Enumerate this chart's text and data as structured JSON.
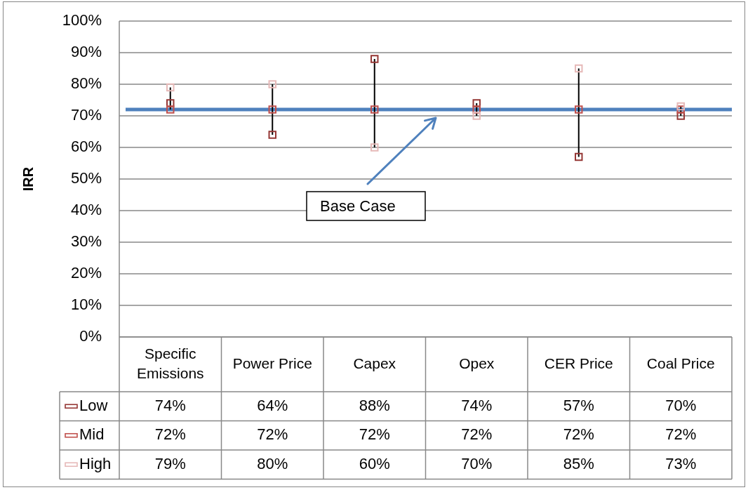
{
  "chart_data": {
    "type": "scatter",
    "ylabel": "IRR",
    "categories": [
      "Specific Emissions",
      "Power Price",
      "Capex",
      "Opex",
      "CER Price",
      "Coal Price"
    ],
    "series": [
      {
        "type": "bar",
        "color": "#000000",
        "base": [
          72,
          64,
          60,
          70,
          57,
          70
        ],
        "values": [
          7,
          16,
          28,
          4,
          28,
          3
        ]
      },
      {
        "name": "Low",
        "color": "#953735",
        "values": [
          74,
          64,
          88,
          74,
          57,
          70
        ],
        "value_labels": [
          "74%",
          "64%",
          "88%",
          "74%",
          "57%",
          "70%"
        ]
      },
      {
        "name": "Mid",
        "color": "#c0504d",
        "values": [
          72,
          72,
          72,
          72,
          72,
          72
        ],
        "value_labels": [
          "72%",
          "72%",
          "72%",
          "72%",
          "72%",
          "72%"
        ]
      },
      {
        "name": "High",
        "color": "#e6b9b8",
        "values": [
          79,
          80,
          60,
          70,
          85,
          73
        ],
        "value_labels": [
          "79%",
          "80%",
          "60%",
          "70%",
          "85%",
          "73%"
        ]
      }
    ],
    "ylim": [
      0,
      100
    ],
    "yticks": [
      {
        "value": 0,
        "label": "0%"
      },
      {
        "value": 10,
        "label": "10%"
      },
      {
        "value": 20,
        "label": "20%"
      },
      {
        "value": 30,
        "label": "30%"
      },
      {
        "value": 40,
        "label": "40%"
      },
      {
        "value": 50,
        "label": "50%"
      },
      {
        "value": 60,
        "label": "60%"
      },
      {
        "value": 70,
        "label": "70%"
      },
      {
        "value": 80,
        "label": "80%"
      },
      {
        "value": 90,
        "label": "90%"
      },
      {
        "value": 100,
        "label": "100%"
      }
    ],
    "grid": "y",
    "legend": "bottom",
    "marker": "square",
    "ref_lines": [
      {
        "axis": "y",
        "value": 72,
        "color": "#4f81bd"
      }
    ],
    "annotations": [
      "Base Case"
    ]
  }
}
